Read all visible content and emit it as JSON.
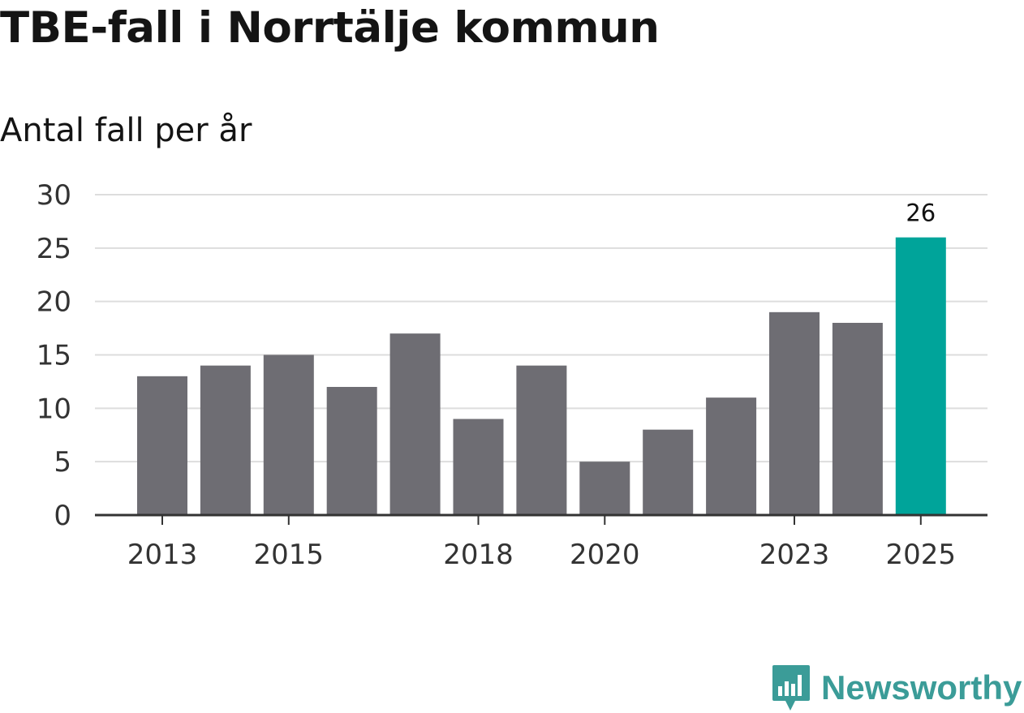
{
  "title": "TBE-fall i Norrtälje kommun",
  "subtitle": "Antal fall per år",
  "brand": {
    "name": "Newsworthy",
    "icon": "newsworthy-logo-icon",
    "color": "#3b9c98"
  },
  "colors": {
    "bar": "#6e6d73",
    "highlight": "#00a49a",
    "grid": "#dddddd",
    "axis": "#333333"
  },
  "chart_data": {
    "type": "bar",
    "title": "TBE-fall i Norrtälje kommun",
    "ylabel": "Antal fall per år",
    "xlabel": "",
    "categories": [
      "2013",
      "2014",
      "2015",
      "2016",
      "2017",
      "2018",
      "2019",
      "2020",
      "2021",
      "2022",
      "2023",
      "2024",
      "2025"
    ],
    "values": [
      13,
      14,
      15,
      12,
      17,
      9,
      14,
      5,
      8,
      11,
      19,
      18,
      26
    ],
    "x_tick_labels": [
      "2013",
      "2015",
      "2018",
      "2020",
      "2023",
      "2025"
    ],
    "y_ticks": [
      0,
      5,
      10,
      15,
      20,
      25,
      30
    ],
    "ylim": [
      0,
      30
    ],
    "highlight_category": "2025",
    "data_labels": [
      {
        "category": "2025",
        "text": "26"
      }
    ],
    "grid": true
  }
}
